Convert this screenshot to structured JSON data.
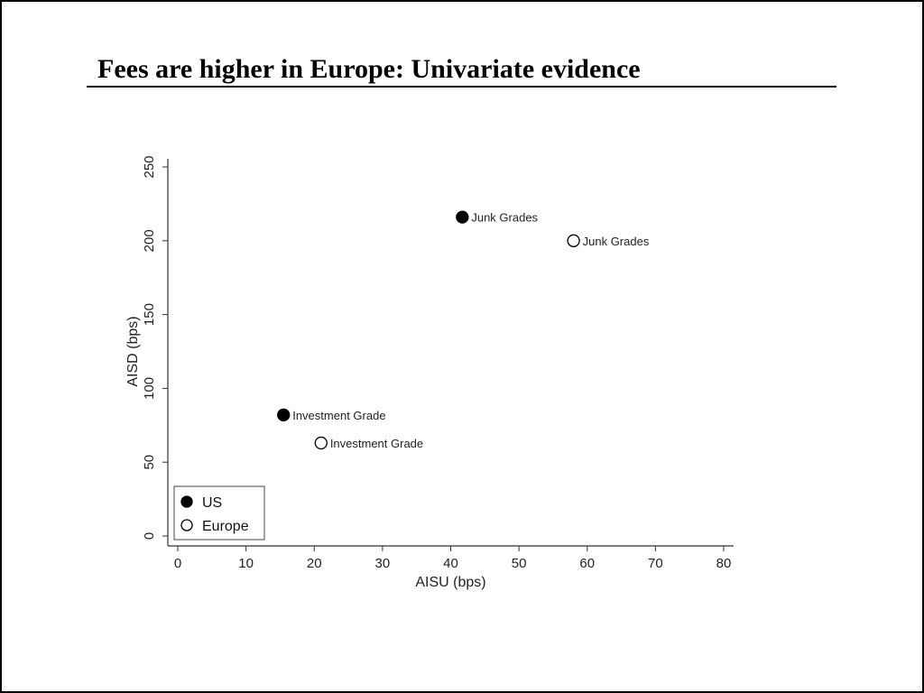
{
  "slide": {
    "title": "Fees are higher in Europe: Univariate evidence"
  },
  "chart_data": {
    "type": "scatter",
    "xlabel": "AISU (bps)",
    "ylabel": "AISD (bps)",
    "xlim": [
      0,
      80
    ],
    "ylim": [
      0,
      250
    ],
    "x_ticks": [
      0,
      10,
      20,
      30,
      40,
      50,
      60,
      70,
      80
    ],
    "y_ticks": [
      0,
      50,
      100,
      150,
      200,
      250
    ],
    "grid": false,
    "legend_position": "bottom-left",
    "series": [
      {
        "name": "US",
        "marker": "filled-circle",
        "color": "#000000",
        "points": [
          {
            "x": 15.5,
            "y": 82,
            "label": "Investment Grade"
          },
          {
            "x": 41.7,
            "y": 216,
            "label": "Junk Grades"
          }
        ]
      },
      {
        "name": "Europe",
        "marker": "hollow-circle",
        "color": "#000000",
        "points": [
          {
            "x": 21,
            "y": 63,
            "label": "Investment Grade"
          },
          {
            "x": 58,
            "y": 200,
            "label": "Junk Grades"
          }
        ]
      }
    ]
  }
}
